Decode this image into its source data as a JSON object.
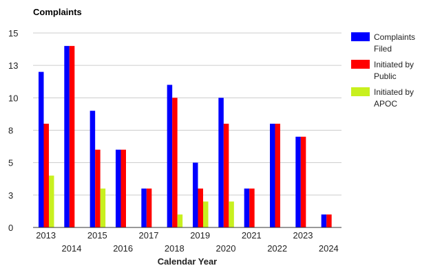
{
  "chart_data": {
    "type": "bar",
    "title": "Complaints",
    "xlabel": "Calendar Year",
    "ylabel": "",
    "ylim": [
      0,
      15
    ],
    "yticks": [
      "0",
      "3",
      "5",
      "8",
      "10",
      "13",
      "15"
    ],
    "grid": true,
    "legend_position": "right",
    "categories": [
      "2013",
      "2014",
      "2015",
      "2016",
      "2017",
      "2018",
      "2019",
      "2020",
      "2021",
      "2022",
      "2023",
      "2024"
    ],
    "series": [
      {
        "name": "Complaints Filed",
        "legend_lines": [
          "Complaints",
          "Filed"
        ],
        "color": "#0000ff",
        "values": [
          12,
          14,
          9,
          6,
          3,
          11,
          5,
          10,
          3,
          8,
          7,
          1
        ]
      },
      {
        "name": "Initiated by Public",
        "legend_lines": [
          "Initiated by",
          "Public"
        ],
        "color": "#ff0000",
        "values": [
          8,
          14,
          6,
          6,
          3,
          10,
          3,
          8,
          3,
          8,
          7,
          1
        ]
      },
      {
        "name": "Initiated by APOC",
        "legend_lines": [
          "Initiated by",
          "APOC"
        ],
        "color": "#c8f01e",
        "values": [
          4,
          0,
          3,
          0,
          0,
          1,
          2,
          2,
          0,
          0,
          0,
          0
        ]
      }
    ]
  }
}
